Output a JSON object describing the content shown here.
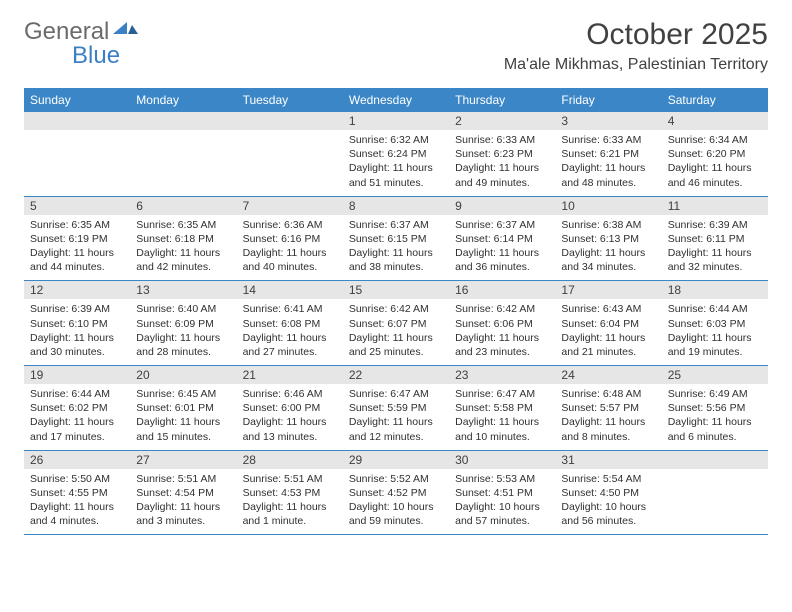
{
  "brand": {
    "general": "General",
    "blue": "Blue"
  },
  "title": "October 2025",
  "location": "Ma'ale Mikhmas, Palestinian Territory",
  "colors": {
    "header_bg": "#3b86c6",
    "header_text": "#ffffff",
    "daynum_bg": "#e6e6e6",
    "text": "#303030",
    "rule": "#3b86c6",
    "logo_gray": "#6b6b6b",
    "logo_blue": "#3b7fc4"
  },
  "day_names": [
    "Sunday",
    "Monday",
    "Tuesday",
    "Wednesday",
    "Thursday",
    "Friday",
    "Saturday"
  ],
  "weeks": [
    [
      {
        "n": "",
        "sr": "",
        "ss": "",
        "dl": ""
      },
      {
        "n": "",
        "sr": "",
        "ss": "",
        "dl": ""
      },
      {
        "n": "",
        "sr": "",
        "ss": "",
        "dl": ""
      },
      {
        "n": "1",
        "sr": "Sunrise: 6:32 AM",
        "ss": "Sunset: 6:24 PM",
        "dl": "Daylight: 11 hours and 51 minutes."
      },
      {
        "n": "2",
        "sr": "Sunrise: 6:33 AM",
        "ss": "Sunset: 6:23 PM",
        "dl": "Daylight: 11 hours and 49 minutes."
      },
      {
        "n": "3",
        "sr": "Sunrise: 6:33 AM",
        "ss": "Sunset: 6:21 PM",
        "dl": "Daylight: 11 hours and 48 minutes."
      },
      {
        "n": "4",
        "sr": "Sunrise: 6:34 AM",
        "ss": "Sunset: 6:20 PM",
        "dl": "Daylight: 11 hours and 46 minutes."
      }
    ],
    [
      {
        "n": "5",
        "sr": "Sunrise: 6:35 AM",
        "ss": "Sunset: 6:19 PM",
        "dl": "Daylight: 11 hours and 44 minutes."
      },
      {
        "n": "6",
        "sr": "Sunrise: 6:35 AM",
        "ss": "Sunset: 6:18 PM",
        "dl": "Daylight: 11 hours and 42 minutes."
      },
      {
        "n": "7",
        "sr": "Sunrise: 6:36 AM",
        "ss": "Sunset: 6:16 PM",
        "dl": "Daylight: 11 hours and 40 minutes."
      },
      {
        "n": "8",
        "sr": "Sunrise: 6:37 AM",
        "ss": "Sunset: 6:15 PM",
        "dl": "Daylight: 11 hours and 38 minutes."
      },
      {
        "n": "9",
        "sr": "Sunrise: 6:37 AM",
        "ss": "Sunset: 6:14 PM",
        "dl": "Daylight: 11 hours and 36 minutes."
      },
      {
        "n": "10",
        "sr": "Sunrise: 6:38 AM",
        "ss": "Sunset: 6:13 PM",
        "dl": "Daylight: 11 hours and 34 minutes."
      },
      {
        "n": "11",
        "sr": "Sunrise: 6:39 AM",
        "ss": "Sunset: 6:11 PM",
        "dl": "Daylight: 11 hours and 32 minutes."
      }
    ],
    [
      {
        "n": "12",
        "sr": "Sunrise: 6:39 AM",
        "ss": "Sunset: 6:10 PM",
        "dl": "Daylight: 11 hours and 30 minutes."
      },
      {
        "n": "13",
        "sr": "Sunrise: 6:40 AM",
        "ss": "Sunset: 6:09 PM",
        "dl": "Daylight: 11 hours and 28 minutes."
      },
      {
        "n": "14",
        "sr": "Sunrise: 6:41 AM",
        "ss": "Sunset: 6:08 PM",
        "dl": "Daylight: 11 hours and 27 minutes."
      },
      {
        "n": "15",
        "sr": "Sunrise: 6:42 AM",
        "ss": "Sunset: 6:07 PM",
        "dl": "Daylight: 11 hours and 25 minutes."
      },
      {
        "n": "16",
        "sr": "Sunrise: 6:42 AM",
        "ss": "Sunset: 6:06 PM",
        "dl": "Daylight: 11 hours and 23 minutes."
      },
      {
        "n": "17",
        "sr": "Sunrise: 6:43 AM",
        "ss": "Sunset: 6:04 PM",
        "dl": "Daylight: 11 hours and 21 minutes."
      },
      {
        "n": "18",
        "sr": "Sunrise: 6:44 AM",
        "ss": "Sunset: 6:03 PM",
        "dl": "Daylight: 11 hours and 19 minutes."
      }
    ],
    [
      {
        "n": "19",
        "sr": "Sunrise: 6:44 AM",
        "ss": "Sunset: 6:02 PM",
        "dl": "Daylight: 11 hours and 17 minutes."
      },
      {
        "n": "20",
        "sr": "Sunrise: 6:45 AM",
        "ss": "Sunset: 6:01 PM",
        "dl": "Daylight: 11 hours and 15 minutes."
      },
      {
        "n": "21",
        "sr": "Sunrise: 6:46 AM",
        "ss": "Sunset: 6:00 PM",
        "dl": "Daylight: 11 hours and 13 minutes."
      },
      {
        "n": "22",
        "sr": "Sunrise: 6:47 AM",
        "ss": "Sunset: 5:59 PM",
        "dl": "Daylight: 11 hours and 12 minutes."
      },
      {
        "n": "23",
        "sr": "Sunrise: 6:47 AM",
        "ss": "Sunset: 5:58 PM",
        "dl": "Daylight: 11 hours and 10 minutes."
      },
      {
        "n": "24",
        "sr": "Sunrise: 6:48 AM",
        "ss": "Sunset: 5:57 PM",
        "dl": "Daylight: 11 hours and 8 minutes."
      },
      {
        "n": "25",
        "sr": "Sunrise: 6:49 AM",
        "ss": "Sunset: 5:56 PM",
        "dl": "Daylight: 11 hours and 6 minutes."
      }
    ],
    [
      {
        "n": "26",
        "sr": "Sunrise: 5:50 AM",
        "ss": "Sunset: 4:55 PM",
        "dl": "Daylight: 11 hours and 4 minutes."
      },
      {
        "n": "27",
        "sr": "Sunrise: 5:51 AM",
        "ss": "Sunset: 4:54 PM",
        "dl": "Daylight: 11 hours and 3 minutes."
      },
      {
        "n": "28",
        "sr": "Sunrise: 5:51 AM",
        "ss": "Sunset: 4:53 PM",
        "dl": "Daylight: 11 hours and 1 minute."
      },
      {
        "n": "29",
        "sr": "Sunrise: 5:52 AM",
        "ss": "Sunset: 4:52 PM",
        "dl": "Daylight: 10 hours and 59 minutes."
      },
      {
        "n": "30",
        "sr": "Sunrise: 5:53 AM",
        "ss": "Sunset: 4:51 PM",
        "dl": "Daylight: 10 hours and 57 minutes."
      },
      {
        "n": "31",
        "sr": "Sunrise: 5:54 AM",
        "ss": "Sunset: 4:50 PM",
        "dl": "Daylight: 10 hours and 56 minutes."
      },
      {
        "n": "",
        "sr": "",
        "ss": "",
        "dl": ""
      }
    ]
  ]
}
